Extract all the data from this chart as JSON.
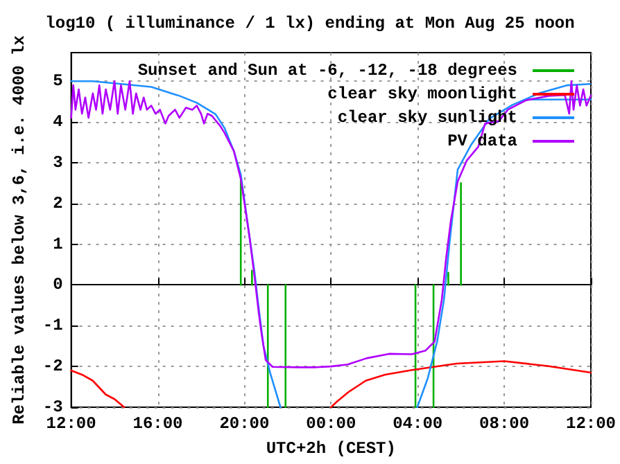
{
  "chart_data": {
    "type": "line",
    "title": "log10 ( illuminance / 1 lx) ending at Mon Aug 25 noon",
    "xlabel": "UTC+2h (CEST)",
    "ylabel": "Reliable values below 3,6, i.e. 4000 lx",
    "xlim": [
      "--08-24T12:00",
      "--08-25T12:00"
    ],
    "xticks": [
      {
        "value": "--08-24T12:00",
        "label": "12:00"
      },
      {
        "value": "--08-24T16:00",
        "label": "16:00"
      },
      {
        "value": "--08-24T20:00",
        "label": "20:00"
      },
      {
        "value": "--08-25T00:00",
        "label": "00:00"
      },
      {
        "value": "--08-25T04:00",
        "label": "04:00"
      },
      {
        "value": "--08-25T08:00",
        "label": "08:00"
      },
      {
        "value": "--08-25T12:00",
        "label": "12:00"
      }
    ],
    "ylim": [
      -3,
      5.7
    ],
    "yticks": [
      -3,
      -2,
      -1,
      0,
      1,
      2,
      3,
      4,
      5
    ],
    "grid": true,
    "legend": "top right",
    "marker": "none",
    "line_style": "solid",
    "series": [
      {
        "name": "Sunset and Sun at -6, -12, -18 degrees",
        "color": "#00b000",
        "x": [
          "--08-24T19:50",
          "--08-24T19:50",
          null,
          "--08-24T20:21",
          "--08-24T20:21",
          null,
          "--08-24T21:05",
          "--08-24T21:05",
          null,
          "--08-24T21:54",
          "--08-24T21:54",
          null,
          "--08-25T03:54",
          "--08-25T03:54",
          null,
          "--08-25T04:44",
          "--08-25T04:44",
          null,
          "--08-25T05:25",
          "--08-25T05:25",
          null,
          "--08-25T06:00",
          "--08-25T06:00"
        ],
        "values": [
          0,
          2.6,
          null,
          0,
          0.35,
          null,
          0,
          -3,
          null,
          0,
          -3,
          null,
          0,
          -3,
          null,
          0,
          -3,
          null,
          0,
          0.3,
          null,
          0,
          2.5
        ]
      },
      {
        "name": "clear sky moonlight",
        "color": "#ff0000",
        "x": [
          "--08-24T12:00",
          "--08-24T12:30",
          "--08-24T13:00",
          "--08-24T13:36",
          "--08-24T14:00",
          "--08-24T14:27",
          null,
          "--08-25T00:00",
          "--08-25T00:18",
          "--08-25T00:48",
          "--08-25T01:36",
          "--08-25T02:30",
          "--08-25T03:42",
          "--08-25T05:48",
          "--08-25T08:00",
          "--08-25T10:00",
          "--08-25T12:00"
        ],
        "values": [
          -2.1,
          -2.2,
          -2.35,
          -2.69,
          -2.8,
          -3,
          null,
          -3,
          -2.85,
          -2.63,
          -2.35,
          -2.2,
          -2.09,
          -1.93,
          -1.87,
          -1.99,
          -2.15
        ]
      },
      {
        "name": "clear sky sunlight",
        "color": "#2090ff",
        "x": [
          "--08-24T12:00",
          "--08-24T13:00",
          "--08-24T15:42",
          "--08-24T17:00",
          "--08-24T17:48",
          "--08-24T18:40",
          "--08-24T19:05",
          "--08-24T19:31",
          "--08-24T19:50",
          "--08-24T20:08",
          "--08-24T20:28",
          "--08-24T20:40",
          "--08-24T20:53",
          "--08-24T21:12",
          "--08-24T21:40",
          null,
          "--08-25T03:59",
          "--08-25T04:28",
          "--08-25T04:54",
          "--08-25T05:13",
          "--08-25T05:28",
          "--08-25T05:51",
          "--08-25T06:29",
          "--08-25T07:19",
          "--08-25T08:23",
          "--08-25T09:39",
          "--08-25T10:55",
          "--08-25T11:58",
          null,
          "--08-25T09:06",
          "--08-25T12:00"
        ],
        "values": [
          5.0,
          5.0,
          4.86,
          4.64,
          4.47,
          4.19,
          3.85,
          3.28,
          2.71,
          1.57,
          0.32,
          -0.59,
          -1.5,
          -2.18,
          -3,
          null,
          -3,
          -2.29,
          -1.39,
          -0.36,
          1.0,
          2.83,
          3.45,
          4.08,
          4.42,
          4.71,
          4.9,
          4.93,
          null,
          4.55,
          4.55
        ]
      },
      {
        "name": "PV data",
        "color": "#b000ff",
        "x": [
          "--08-24T12:00",
          "--08-24T12:06",
          "--08-24T12:12",
          "--08-24T12:21",
          "--08-24T12:30",
          "--08-24T12:39",
          "--08-24T12:48",
          "--08-24T13:00",
          "--08-24T13:09",
          "--08-24T13:18",
          "--08-24T13:27",
          "--08-24T13:36",
          "--08-24T13:48",
          "--08-24T14:00",
          "--08-24T14:09",
          "--08-24T14:18",
          "--08-24T14:30",
          "--08-24T14:42",
          "--08-24T14:51",
          "--08-24T15:00",
          "--08-24T15:12",
          "--08-24T15:21",
          "--08-24T15:30",
          "--08-24T15:42",
          "--08-24T15:54",
          "--08-24T16:06",
          "--08-24T16:21",
          "--08-24T16:30",
          "--08-24T16:48",
          "--08-24T17:00",
          "--08-24T17:18",
          "--08-24T17:36",
          "--08-24T17:48",
          "--08-24T18:00",
          "--08-24T18:08",
          "--08-24T18:18",
          "--08-24T18:30",
          "--08-24T18:53",
          "--08-24T19:05",
          "--08-24T19:31",
          "--08-24T19:50",
          "--08-24T20:02",
          "--08-24T20:15",
          "--08-24T20:28",
          "--08-24T20:40",
          "--08-24T20:47",
          "--08-24T20:59",
          "--08-24T21:18",
          "--08-24T22:30",
          "--08-24T23:19",
          "--08-25T00:00",
          "--08-25T00:47",
          "--08-25T01:38",
          "--08-25T02:41",
          "--08-25T03:44",
          "--08-25T04:22",
          "--08-25T04:47",
          "--08-25T05:07",
          "--08-25T05:19",
          "--08-25T05:32",
          "--08-25T05:51",
          "--08-25T06:16",
          "--08-25T06:48",
          "--08-25T07:07",
          "--08-25T07:45",
          "--08-25T08:10",
          "--08-25T09:00",
          "--08-25T10:04",
          "--08-25T10:48",
          "--08-25T11:00",
          "--08-25T11:06",
          "--08-25T11:12",
          "--08-25T11:21",
          "--08-25T11:30",
          "--08-25T11:39",
          "--08-25T11:48",
          "--08-25T12:00"
        ],
        "values": [
          4.1,
          4.9,
          4.3,
          4.8,
          4.2,
          4.6,
          4.1,
          4.7,
          4.3,
          4.9,
          4.2,
          4.8,
          4.3,
          5.0,
          4.2,
          4.9,
          4.3,
          5.0,
          4.2,
          4.7,
          4.3,
          4.6,
          4.3,
          4.4,
          4.2,
          4.3,
          3.96,
          4.15,
          4.3,
          4.1,
          4.35,
          4.3,
          4.4,
          4.2,
          3.96,
          4.2,
          4.15,
          3.9,
          3.73,
          3.28,
          2.6,
          1.91,
          1.12,
          0.21,
          -0.7,
          -1.16,
          -1.84,
          -2.01,
          -2.02,
          -2.02,
          -2.0,
          -1.95,
          -1.8,
          -1.69,
          -1.7,
          -1.61,
          -1.39,
          -0.36,
          0.66,
          1.57,
          2.54,
          3.05,
          3.39,
          3.96,
          4.02,
          4.3,
          4.53,
          4.64,
          4.66,
          4.2,
          5.0,
          4.3,
          4.9,
          4.4,
          4.8,
          4.4,
          4.65
        ]
      }
    ]
  }
}
